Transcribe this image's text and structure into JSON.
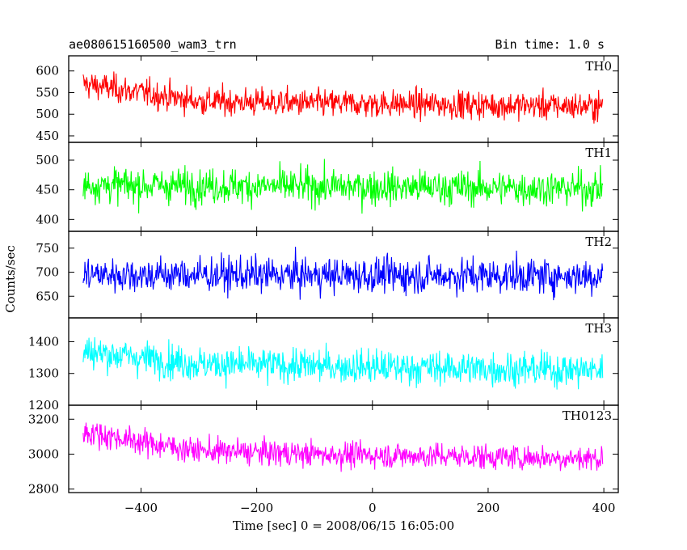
{
  "chart_data": {
    "type": "line",
    "title": "ae080615160500_wam3_trn",
    "bin_time_label": "Bin time: 1.0 s",
    "xlabel": "Time [sec] 0 = 2008/06/15 16:05:00",
    "ylabel": "Counts/sec",
    "xlim": [
      -525,
      425
    ],
    "x_ticks": [
      -400,
      -200,
      0,
      200,
      400
    ],
    "x_tick_labels": [
      "−400",
      "−200",
      "0",
      "200",
      "400"
    ],
    "x_range": [
      -500,
      398
    ],
    "panels": [
      {
        "name": "TH0",
        "color": "#ff0000",
        "ylim": [
          435,
          635
        ],
        "y_ticks": [
          450,
          500,
          550,
          600
        ],
        "y_tick_labels": [
          "450",
          "500",
          "550",
          "600"
        ],
        "trend": [
          [
            -500,
            570
          ],
          [
            -400,
            550
          ],
          [
            -300,
            530
          ],
          [
            -100,
            525
          ],
          [
            100,
            523
          ],
          [
            398,
            518
          ]
        ],
        "noise": 23
      },
      {
        "name": "TH1",
        "color": "#00ff00",
        "ylim": [
          380,
          530
        ],
        "y_ticks": [
          400,
          450,
          500
        ],
        "y_tick_labels": [
          "400",
          "450",
          "500"
        ],
        "trend": [
          [
            -500,
            458
          ],
          [
            398,
            452
          ]
        ],
        "noise": 21
      },
      {
        "name": "TH2",
        "color": "#0000ff",
        "ylim": [
          605,
          785
        ],
        "y_ticks": [
          650,
          700,
          750
        ],
        "y_tick_labels": [
          "650",
          "700",
          "750"
        ],
        "trend": [
          [
            -500,
            695
          ],
          [
            398,
            692
          ]
        ],
        "noise": 26
      },
      {
        "name": "TH3",
        "color": "#00ffff",
        "ylim": [
          1200,
          1475
        ],
        "y_ticks": [
          1200,
          1300,
          1400
        ],
        "y_tick_labels": [
          "1200",
          "1300",
          "1400"
        ],
        "trend": [
          [
            -500,
            1370
          ],
          [
            -400,
            1350
          ],
          [
            -300,
            1330
          ],
          [
            0,
            1320
          ],
          [
            398,
            1310
          ]
        ],
        "noise": 38
      },
      {
        "name": "TH0123",
        "color": "#ff00ff",
        "ylim": [
          2780,
          3280
        ],
        "y_ticks": [
          2800,
          3000,
          3200
        ],
        "y_tick_labels": [
          "2800",
          "3000",
          "3200"
        ],
        "trend": [
          [
            -500,
            3130
          ],
          [
            -400,
            3070
          ],
          [
            -300,
            3020
          ],
          [
            -100,
            3000
          ],
          [
            100,
            2990
          ],
          [
            398,
            2975
          ]
        ],
        "noise": 52
      }
    ]
  }
}
